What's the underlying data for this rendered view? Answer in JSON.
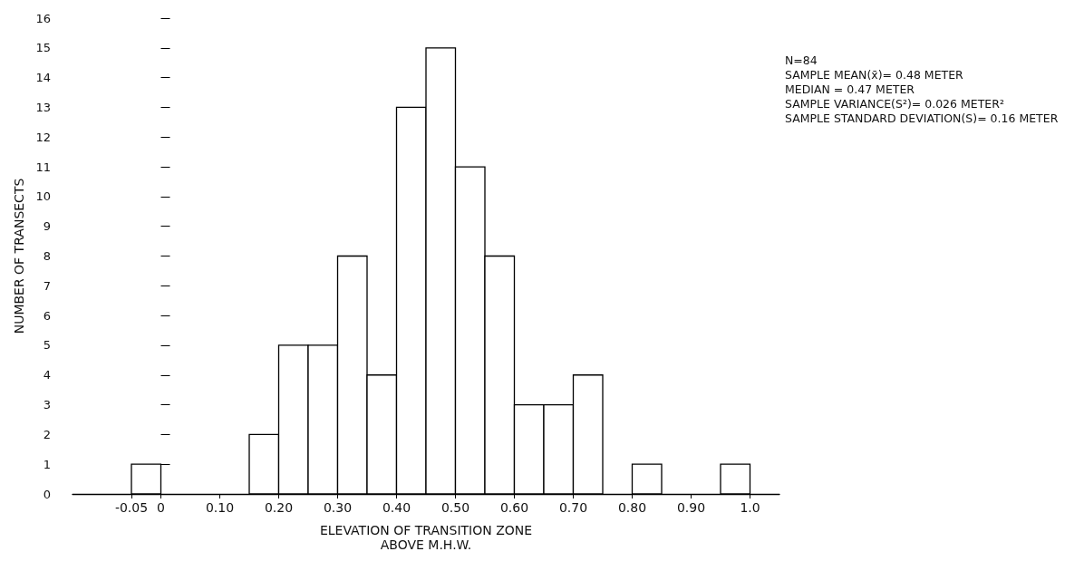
{
  "chart_data": {
    "type": "histogram",
    "xlabel": "ELEVATION OF TRANSITION ZONE\nABOVE M.H.W.",
    "ylabel": "NUMBER OF TRANSECTS",
    "bins": [
      -0.05,
      0,
      0.05,
      0.1,
      0.15,
      0.2,
      0.25,
      0.3,
      0.35,
      0.4,
      0.45,
      0.5,
      0.55,
      0.6,
      0.65,
      0.7,
      0.75,
      0.8,
      0.85,
      0.9,
      0.95,
      1.0
    ],
    "values": [
      1,
      0,
      0,
      0,
      2,
      5,
      5,
      8,
      4,
      13,
      15,
      11,
      8,
      3,
      3,
      4,
      0,
      1,
      0,
      0,
      1
    ],
    "color": "#ffffff",
    "xlim": [
      -0.15,
      1.05
    ],
    "xticks": [
      -0.05,
      0,
      {
        "value": 0.1,
        "label": "0.10"
      },
      {
        "value": 0.2,
        "label": "0.20"
      },
      {
        "value": 0.3,
        "label": "0.30"
      },
      {
        "value": 0.4,
        "label": "0.40"
      },
      {
        "value": 0.5,
        "label": "0.50"
      },
      {
        "value": 0.6,
        "label": "0.60"
      },
      {
        "value": 0.7,
        "label": "0.70"
      },
      {
        "value": 0.8,
        "label": "0.80"
      },
      {
        "value": 0.9,
        "label": "0.90"
      },
      {
        "value": 1,
        "label": "1.0"
      }
    ],
    "ylim": [
      0,
      16
    ],
    "yticks": [
      0,
      1,
      2,
      3,
      4,
      5,
      6,
      7,
      8,
      9,
      10,
      11,
      12,
      13,
      14,
      15,
      16
    ],
    "grid": false,
    "annotations": [
      "N=84",
      "SAMPLE MEAN(x̄)= 0.48 METER",
      "MEDIAN = 0.47 METER",
      "SAMPLE VARIANCE(S²)= 0.026 METER²",
      "SAMPLE STANDARD DEVIATION(S)= 0.16 METER"
    ]
  }
}
